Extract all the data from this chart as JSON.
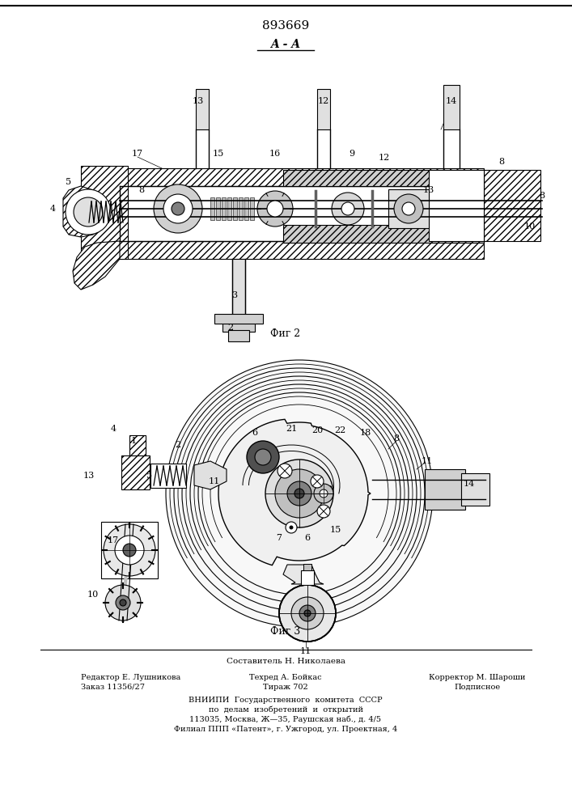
{
  "patent_number": "893669",
  "section_label": "A - A",
  "fig2_label": "Фиг 2",
  "fig3_label": "Фиг 3",
  "footer_composer": "Составитель Н. Николаева",
  "footer_editor": "Редактор Е. Лушникова",
  "footer_order": "Заказ 11356/27",
  "footer_techred": "Техред А. Бойкас",
  "footer_tirazh": "Тираж 702",
  "footer_corrector": "Корректор М. Шароши",
  "footer_podpisnoe": "Подписное",
  "footer_vniiipi": "ВНИИПИ  Государственного  комитета  СССР",
  "footer_po_delam": "по  делам  изобретений  и  открытий",
  "footer_address": "113035, Москва, Ж—35, Раушская наб., д. 4/5",
  "footer_filial": "Филиал ППП «Патент», г. Ужгород, ул. Проектная, 4",
  "bg_color": "#ffffff",
  "line_color": "#000000"
}
